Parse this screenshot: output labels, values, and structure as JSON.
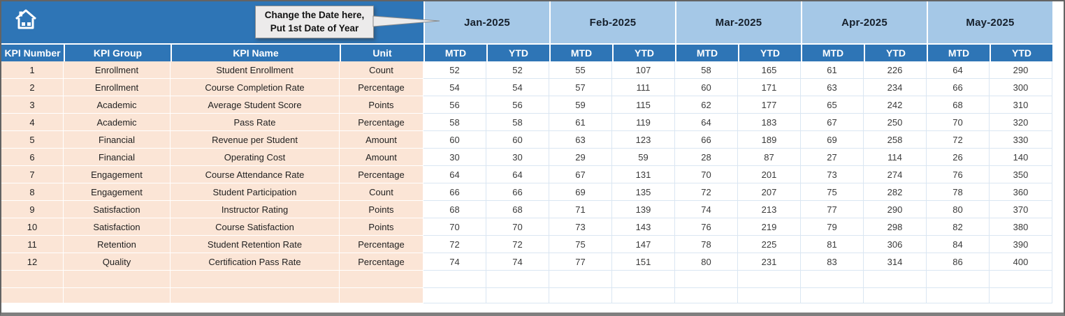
{
  "banner": {
    "callout": {
      "line1": "Change the Date here,",
      "line2": "Put 1st Date of Year"
    }
  },
  "table": {
    "left_headers": [
      "KPI Number",
      "KPI Group",
      "KPI Name",
      "Unit"
    ],
    "months": [
      "Jan-2025",
      "Feb-2025",
      "Mar-2025",
      "Apr-2025",
      "May-2025"
    ],
    "sub_headers": [
      "MTD",
      "YTD"
    ],
    "rows": [
      {
        "kpi_number": 1,
        "kpi_group": "Enrollment",
        "kpi_name": "Student Enrollment",
        "unit": "Count",
        "values": [
          52,
          52,
          55,
          107,
          58,
          165,
          61,
          226,
          64,
          290
        ]
      },
      {
        "kpi_number": 2,
        "kpi_group": "Enrollment",
        "kpi_name": "Course Completion Rate",
        "unit": "Percentage",
        "values": [
          54,
          54,
          57,
          111,
          60,
          171,
          63,
          234,
          66,
          300
        ]
      },
      {
        "kpi_number": 3,
        "kpi_group": "Academic",
        "kpi_name": "Average Student Score",
        "unit": "Points",
        "values": [
          56,
          56,
          59,
          115,
          62,
          177,
          65,
          242,
          68,
          310
        ]
      },
      {
        "kpi_number": 4,
        "kpi_group": "Academic",
        "kpi_name": "Pass Rate",
        "unit": "Percentage",
        "values": [
          58,
          58,
          61,
          119,
          64,
          183,
          67,
          250,
          70,
          320
        ]
      },
      {
        "kpi_number": 5,
        "kpi_group": "Financial",
        "kpi_name": "Revenue per Student",
        "unit": "Amount",
        "values": [
          60,
          60,
          63,
          123,
          66,
          189,
          69,
          258,
          72,
          330
        ]
      },
      {
        "kpi_number": 6,
        "kpi_group": "Financial",
        "kpi_name": "Operating Cost",
        "unit": "Amount",
        "values": [
          30,
          30,
          29,
          59,
          28,
          87,
          27,
          114,
          26,
          140
        ]
      },
      {
        "kpi_number": 7,
        "kpi_group": "Engagement",
        "kpi_name": "Course Attendance Rate",
        "unit": "Percentage",
        "values": [
          64,
          64,
          67,
          131,
          70,
          201,
          73,
          274,
          76,
          350
        ]
      },
      {
        "kpi_number": 8,
        "kpi_group": "Engagement",
        "kpi_name": "Student Participation",
        "unit": "Count",
        "values": [
          66,
          66,
          69,
          135,
          72,
          207,
          75,
          282,
          78,
          360
        ]
      },
      {
        "kpi_number": 9,
        "kpi_group": "Satisfaction",
        "kpi_name": "Instructor Rating",
        "unit": "Points",
        "values": [
          68,
          68,
          71,
          139,
          74,
          213,
          77,
          290,
          80,
          370
        ]
      },
      {
        "kpi_number": 10,
        "kpi_group": "Satisfaction",
        "kpi_name": "Course Satisfaction",
        "unit": "Points",
        "values": [
          70,
          70,
          73,
          143,
          76,
          219,
          79,
          298,
          82,
          380
        ]
      },
      {
        "kpi_number": 11,
        "kpi_group": "Retention",
        "kpi_name": "Student Retention Rate",
        "unit": "Percentage",
        "values": [
          72,
          72,
          75,
          147,
          78,
          225,
          81,
          306,
          84,
          390
        ]
      },
      {
        "kpi_number": 12,
        "kpi_group": "Quality",
        "kpi_name": "Certification Pass Rate",
        "unit": "Percentage",
        "values": [
          74,
          74,
          77,
          151,
          80,
          231,
          83,
          314,
          86,
          400
        ]
      }
    ],
    "empty_rows": 2
  },
  "colors": {
    "header_blue": "#2E75B6",
    "month_band_blue": "#A5C8E7",
    "row_peach": "#FBE5D6",
    "gridline_blue": "#DAE6F2"
  }
}
